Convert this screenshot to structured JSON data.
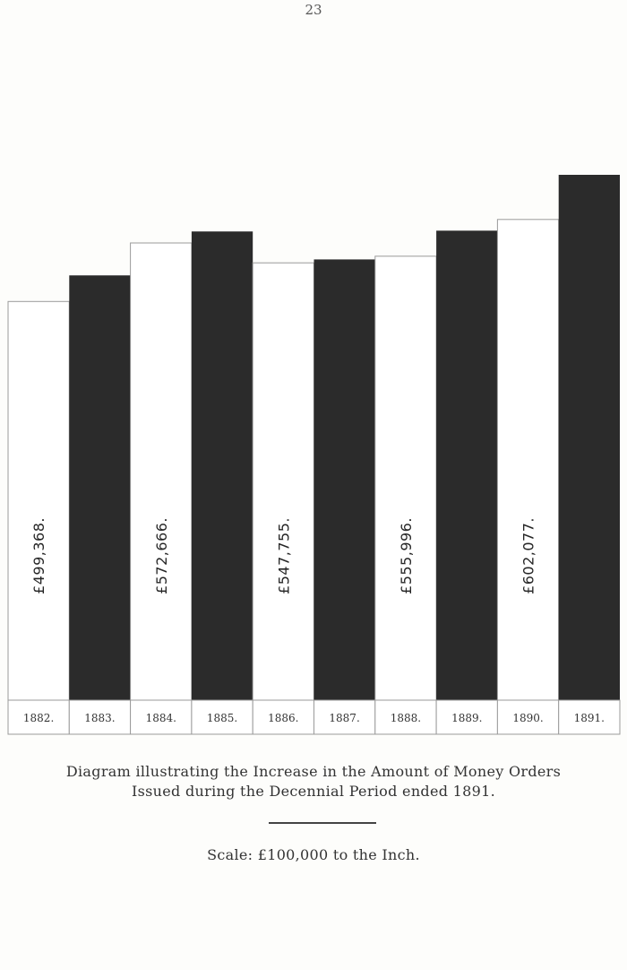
{
  "page_number": "23",
  "chart_data": {
    "type": "bar",
    "categories": [
      "1882.",
      "1883.",
      "1884.",
      "1885.",
      "1886.",
      "1887.",
      "1888.",
      "1889.",
      "1890.",
      "1891."
    ],
    "values": [
      499368,
      532000,
      572666,
      587000,
      547755,
      552000,
      555996,
      588000,
      602077,
      658000
    ],
    "data_labels": [
      "£499,368.",
      "",
      "£572,666.",
      "",
      "£547,755.",
      "",
      "£555,996.",
      "",
      "£602,077.",
      ""
    ],
    "title": "Diagram illustrating the Increase in the Amount of Money Orders Issued during the Decennial Period ended 1891.",
    "xlabel": "",
    "ylabel": "",
    "ylim": [
      0,
      658000
    ],
    "colors": {
      "dark": "#2b2b2b",
      "light": "#ffffff"
    }
  },
  "caption": {
    "line1": "Diagram illustrating the Increase in the Amount of Money Orders",
    "line2": "Issued during the Decennial Period ended 1891."
  },
  "scale_text": "Scale: £100,000 to the Inch."
}
